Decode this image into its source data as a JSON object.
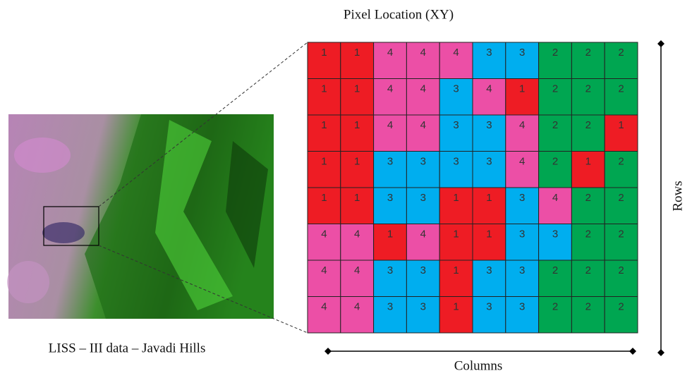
{
  "title": "Pixel Location (XY)",
  "image_caption": "LISS – III data – Javadi Hills",
  "x_axis_label": "Columns",
  "y_axis_label": "Rows",
  "cell_colors": {
    "1": "#ee1c24",
    "2": "#00a651",
    "3": "#00aeef",
    "4": "#ec4fa6"
  },
  "grid": {
    "rows": [
      [
        1,
        1,
        4,
        4,
        4,
        3,
        3,
        2,
        2,
        2
      ],
      [
        1,
        1,
        4,
        4,
        3,
        4,
        1,
        2,
        2,
        2
      ],
      [
        1,
        1,
        4,
        4,
        3,
        3,
        4,
        2,
        2,
        1
      ],
      [
        1,
        1,
        3,
        3,
        3,
        3,
        4,
        2,
        1,
        2
      ],
      [
        1,
        1,
        3,
        3,
        1,
        1,
        3,
        4,
        2,
        2
      ],
      [
        4,
        4,
        1,
        4,
        1,
        1,
        3,
        3,
        2,
        2
      ],
      [
        4,
        4,
        3,
        3,
        1,
        3,
        3,
        2,
        2,
        2
      ],
      [
        4,
        4,
        3,
        3,
        1,
        3,
        3,
        2,
        2,
        2
      ]
    ]
  }
}
